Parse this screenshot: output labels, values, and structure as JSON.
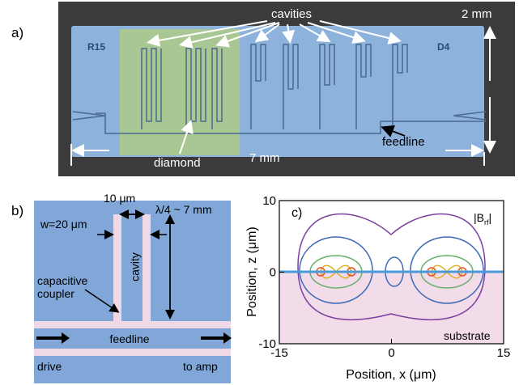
{
  "panel_a": {
    "label": "a)",
    "cavities": "cavities",
    "height": "2 mm",
    "chip_left": "R15",
    "chip_right": "D4",
    "feedline": "feedline",
    "diamond": "diamond",
    "width": "7 mm"
  },
  "panel_b": {
    "label": "b)",
    "gap": "10 μm",
    "length": "λ/4 ~ 7 mm",
    "width": "w=20 μm",
    "cavity": "cavity",
    "coupler_line1": "capacitive",
    "coupler_line2": "coupler",
    "feedline": "feedline",
    "drive": "drive",
    "to_amp": "to amp"
  },
  "panel_c": {
    "label": "c)",
    "field_label": {
      "main": "|B",
      "sub": "rf",
      "end": "|"
    },
    "substrate": "substrate",
    "x_title": "Position, x (μm)",
    "y_title": "Position, z (μm)",
    "xlim": [
      -15,
      15
    ],
    "ylim": [
      -10,
      10
    ],
    "xticks": [
      -15,
      0,
      15
    ],
    "yticks": [
      -10,
      0,
      10
    ]
  }
}
